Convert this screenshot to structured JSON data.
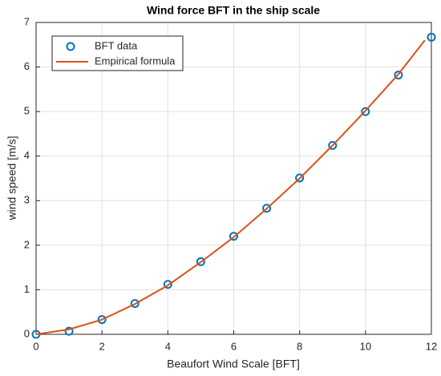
{
  "chart_data": {
    "type": "line",
    "title": "Wind force BFT in the ship scale",
    "x_label": "Beaufort Wind Scale [BFT]",
    "y_label": "wind speed [m/s]",
    "xlim": [
      0,
      12
    ],
    "ylim": [
      0,
      7
    ],
    "xticks": [
      0,
      2,
      4,
      6,
      8,
      10,
      12
    ],
    "yticks": [
      0,
      1,
      2,
      3,
      4,
      5,
      6,
      7
    ],
    "grid": true,
    "legend": "upper left",
    "series": [
      {
        "name": "BFT data",
        "color": "#0072bd",
        "style": "marker",
        "x": [
          0,
          1,
          2,
          3,
          4,
          5,
          6,
          7,
          8,
          9,
          10,
          11,
          12
        ],
        "values": [
          0,
          0.07,
          0.33,
          0.69,
          1.12,
          1.63,
          2.2,
          2.83,
          3.51,
          4.24,
          5.0,
          5.82,
          6.67
        ]
      },
      {
        "name": "Empirical formula",
        "color": "#d95319",
        "style": "line",
        "x": [
          0,
          1,
          2,
          3,
          4,
          5,
          6,
          7,
          8,
          9,
          10,
          11,
          11.8
        ],
        "values": [
          0,
          0.11,
          0.33,
          0.68,
          1.1,
          1.62,
          2.18,
          2.82,
          3.5,
          4.24,
          5.02,
          5.84,
          6.6
        ]
      }
    ]
  }
}
